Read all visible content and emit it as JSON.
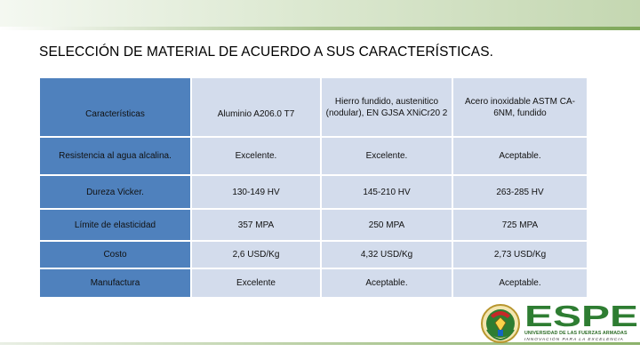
{
  "title": "SELECCIÓN DE MATERIAL DE ACUERDO A SUS CARACTERÍSTICAS.",
  "table": {
    "headers": [
      "Características",
      "Aluminio A206.0 T7",
      "Hierro fundido, austenitico (nodular), EN GJSA XNiCr20 2",
      "Acero inoxidable ASTM CA-6NM, fundido"
    ],
    "rows": [
      [
        "Resistencia al agua alcalina.",
        "Excelente.",
        "Excelente.",
        "Aceptable."
      ],
      [
        "Dureza Vicker.",
        "130-149 HV",
        "145-210 HV",
        "263-285 HV"
      ],
      [
        "Límite de elasticidad",
        "357 MPA",
        "250 MPA",
        "725 MPA"
      ],
      [
        "Costo",
        "2,6 USD/Kg",
        "4,32 USD/Kg",
        "2,73 USD/Kg"
      ],
      [
        "Manufactura",
        "Excelente",
        "Aceptable.",
        "Aceptable."
      ]
    ]
  },
  "logo": {
    "name": "ESPE",
    "subtitle": "UNIVERSIDAD DE LAS FUERZAS ARMADAS",
    "tagline": "INNOVACIÓN PARA LA EXCELENCIA"
  },
  "colors": {
    "header_blue": "#4f81bd",
    "cell_light": "#d3dcec",
    "logo_green": "#2e7d32"
  }
}
